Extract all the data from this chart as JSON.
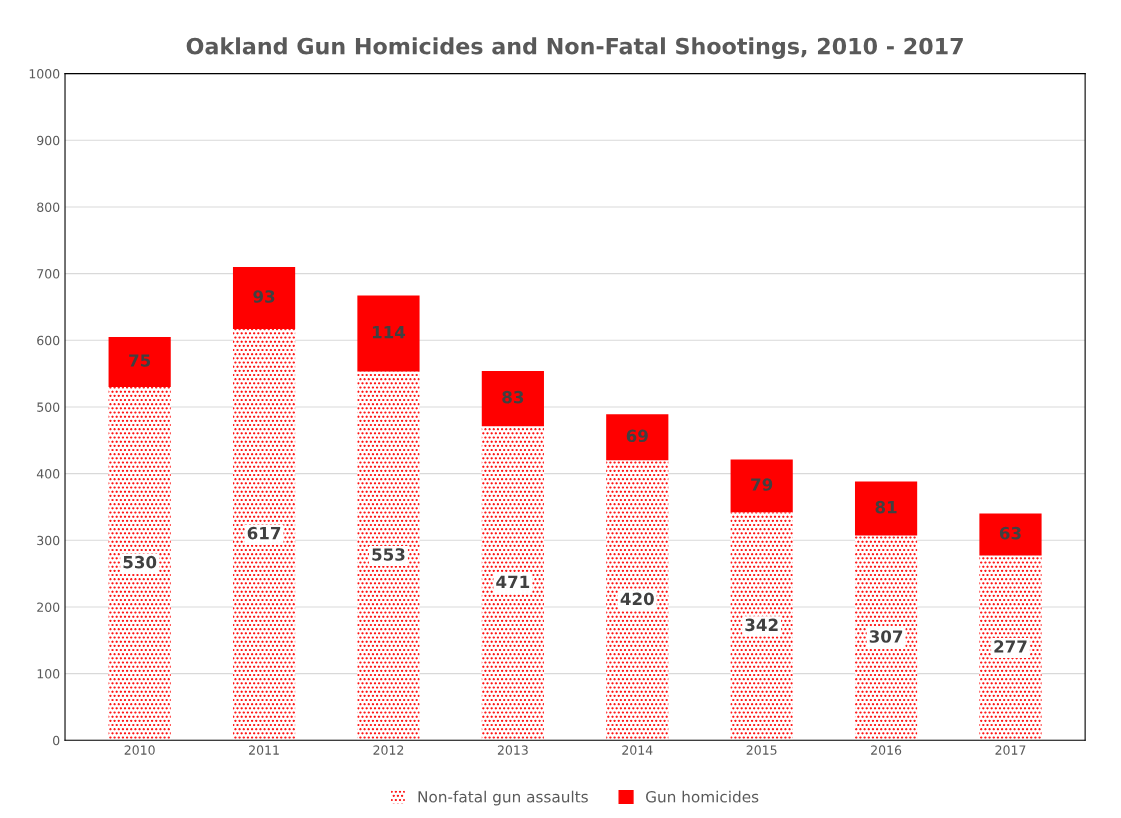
{
  "chart_data": {
    "type": "bar",
    "title": "Oakland Gun Homicides and Non-Fatal Shootings, 2010 - 2017",
    "categories": [
      "2010",
      "2011",
      "2012",
      "2013",
      "2014",
      "2015",
      "2016",
      "2017"
    ],
    "series": [
      {
        "name": "Non-fatal gun assaults",
        "color": "#ff0000",
        "values": [
          530,
          617,
          553,
          471,
          420,
          342,
          307,
          277
        ]
      },
      {
        "name": "Gun homicides",
        "color": "#ff0000",
        "values": [
          75,
          93,
          114,
          83,
          69,
          79,
          81,
          63
        ]
      }
    ],
    "stacked": true,
    "ylim": [
      0,
      1000
    ],
    "yticks": [
      0,
      100,
      200,
      300,
      400,
      500,
      600,
      700,
      800,
      900,
      1000
    ],
    "grid": "y",
    "legend": "bottom",
    "data_labels": true
  }
}
